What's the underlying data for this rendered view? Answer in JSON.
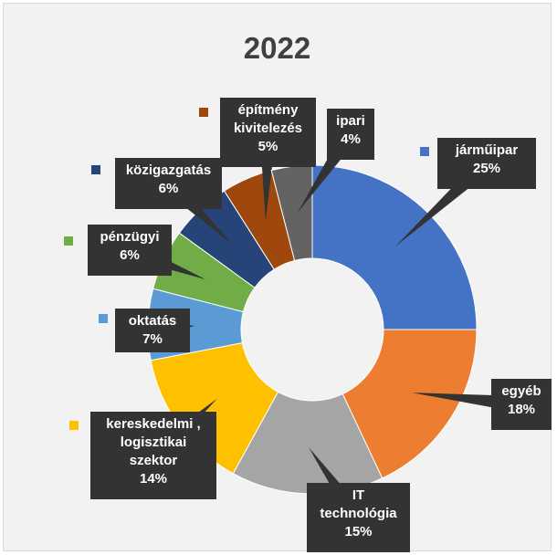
{
  "chart_data": {
    "type": "pie",
    "donut": true,
    "title": "2022",
    "legend": "labels beside slices with colored markers",
    "slices": [
      {
        "name": "járműipar",
        "value": 25,
        "label": "25%",
        "color": "#4472c4"
      },
      {
        "name": "egyéb",
        "value": 18,
        "label": "18%",
        "color": "#ed7d31"
      },
      {
        "name": "IT technológia",
        "value": 15,
        "label": "15%",
        "color": "#a5a5a5"
      },
      {
        "name": "kereskedelmi , logisztikai szektor",
        "value": 14,
        "label": "14%",
        "color": "#ffc000"
      },
      {
        "name": "oktatás",
        "value": 7,
        "label": "7%",
        "color": "#5b9bd5"
      },
      {
        "name": "pénzügyi",
        "value": 6,
        "label": "6%",
        "color": "#70ad47"
      },
      {
        "name": "közigazgatás",
        "value": 6,
        "label": "6%",
        "color": "#264478"
      },
      {
        "name": "építmény kivitelezés",
        "value": 5,
        "label": "5%",
        "color": "#9e480e"
      },
      {
        "name": "ipari",
        "value": 4,
        "label": "4%",
        "color": "#636363"
      }
    ]
  }
}
